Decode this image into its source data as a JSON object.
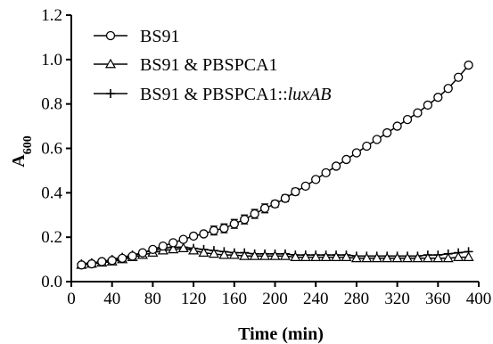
{
  "chart_data": {
    "type": "line",
    "title": "",
    "xlabel": "Time (min)",
    "ylabel_main": "A",
    "ylabel_sub": "600",
    "xlim": [
      0,
      400
    ],
    "ylim": [
      0.0,
      1.2
    ],
    "xticks": [
      0,
      40,
      80,
      120,
      160,
      200,
      240,
      280,
      320,
      360,
      400
    ],
    "yticks": [
      0.0,
      0.2,
      0.4,
      0.6,
      0.8,
      1.0,
      1.2
    ],
    "ytick_labels": [
      "0.0",
      "0.2",
      "0.4",
      "0.6",
      "0.8",
      "1.0",
      "1.2"
    ],
    "grid": false,
    "legend_position": "top-left",
    "legend": [
      {
        "marker": "circle",
        "text_plain": "BS91",
        "text_italic": ""
      },
      {
        "marker": "triangle",
        "text_plain": "BS91 & PBSPCA1",
        "text_italic": ""
      },
      {
        "marker": "plus",
        "text_plain": "BS91 & PBSPCA1::",
        "text_italic": "luxAB"
      }
    ],
    "x": [
      10,
      20,
      30,
      40,
      50,
      60,
      70,
      80,
      90,
      100,
      110,
      120,
      130,
      140,
      150,
      160,
      170,
      180,
      190,
      200,
      210,
      220,
      230,
      240,
      250,
      260,
      270,
      280,
      290,
      300,
      310,
      320,
      330,
      340,
      350,
      360,
      370,
      380,
      390
    ],
    "series": [
      {
        "name": "BS91",
        "marker": "circle",
        "values": [
          0.075,
          0.08,
          0.09,
          0.095,
          0.105,
          0.115,
          0.13,
          0.145,
          0.16,
          0.175,
          0.19,
          0.205,
          0.215,
          0.23,
          0.24,
          0.26,
          0.28,
          0.305,
          0.33,
          0.35,
          0.375,
          0.405,
          0.43,
          0.46,
          0.49,
          0.52,
          0.55,
          0.58,
          0.61,
          0.64,
          0.67,
          0.7,
          0.73,
          0.76,
          0.795,
          0.83,
          0.87,
          0.92,
          0.975
        ],
        "error": [
          0,
          0,
          0,
          0,
          0,
          0,
          0,
          0,
          0,
          0,
          0,
          0,
          0,
          0.02,
          0.02,
          0.02,
          0.02,
          0.02,
          0.02,
          0.015,
          0.015,
          0.015,
          0.01,
          0.01,
          0,
          0,
          0,
          0,
          0,
          0,
          0,
          0,
          0,
          0,
          0,
          0,
          0,
          0,
          0
        ]
      },
      {
        "name": "BS91 & PBSPCA1",
        "marker": "triangle",
        "values": [
          0.075,
          0.08,
          0.085,
          0.09,
          0.1,
          0.11,
          0.12,
          0.13,
          0.14,
          0.145,
          0.15,
          0.14,
          0.13,
          0.125,
          0.12,
          0.12,
          0.115,
          0.115,
          0.115,
          0.115,
          0.115,
          0.11,
          0.11,
          0.11,
          0.11,
          0.11,
          0.11,
          0.105,
          0.105,
          0.105,
          0.105,
          0.105,
          0.105,
          0.105,
          0.105,
          0.105,
          0.105,
          0.11,
          0.11
        ],
        "error": []
      },
      {
        "name": "BS91 & PBSPCA1::luxAB",
        "marker": "plus",
        "values": [
          0.08,
          0.085,
          0.09,
          0.1,
          0.11,
          0.12,
          0.13,
          0.14,
          0.15,
          0.155,
          0.155,
          0.15,
          0.145,
          0.14,
          0.135,
          0.13,
          0.13,
          0.125,
          0.125,
          0.125,
          0.125,
          0.12,
          0.12,
          0.12,
          0.12,
          0.12,
          0.12,
          0.115,
          0.115,
          0.115,
          0.115,
          0.115,
          0.115,
          0.115,
          0.12,
          0.12,
          0.125,
          0.13,
          0.135
        ],
        "error": []
      }
    ]
  }
}
